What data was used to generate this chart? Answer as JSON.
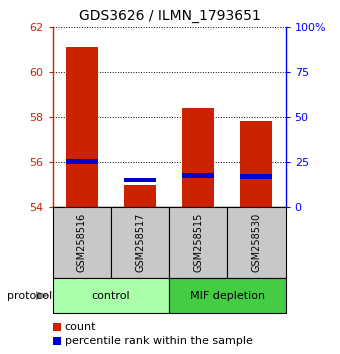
{
  "title": "GDS3626 / ILMN_1793651",
  "samples": [
    "GSM258516",
    "GSM258517",
    "GSM258515",
    "GSM258530"
  ],
  "groups": [
    {
      "label": "control",
      "indices": [
        0,
        1
      ],
      "color": "#aaffaa"
    },
    {
      "label": "MIF depletion",
      "indices": [
        2,
        3
      ],
      "color": "#44cc44"
    }
  ],
  "count_values": [
    61.1,
    55.0,
    58.4,
    57.8
  ],
  "percentile_values": [
    56.0,
    55.2,
    55.4,
    55.35
  ],
  "y_min": 54,
  "y_max": 62,
  "y_ticks": [
    54,
    56,
    58,
    60,
    62
  ],
  "y2_ticks": [
    0,
    25,
    50,
    75,
    100
  ],
  "bar_width": 0.55,
  "count_color": "#cc2200",
  "percentile_color": "#0000cc",
  "bg_color": "#ffffff",
  "legend_count_label": "count",
  "legend_pct_label": "percentile rank within the sample",
  "pct_bar_height": 0.22
}
